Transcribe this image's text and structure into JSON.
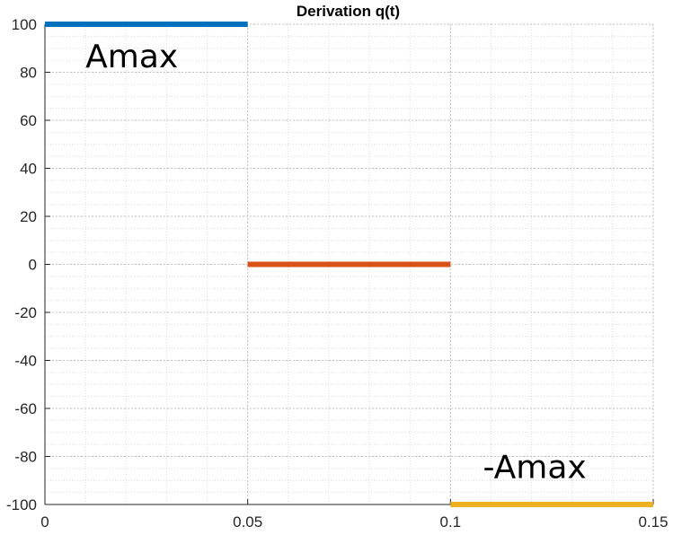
{
  "chart_data": {
    "type": "line",
    "title": "Derivation q(t)",
    "xlabel": "",
    "ylabel": "",
    "xlim": [
      0,
      0.15
    ],
    "ylim": [
      -100,
      100
    ],
    "x_ticks": [
      0,
      0.05,
      0.1,
      0.15
    ],
    "x_tick_labels": [
      "0",
      "0.05",
      "0.1",
      "0.15"
    ],
    "y_ticks": [
      100,
      80,
      60,
      40,
      20,
      0,
      -20,
      -40,
      -60,
      -80,
      -100
    ],
    "y_tick_labels": [
      "100",
      "80",
      "60",
      "40",
      "20",
      "0",
      "-20",
      "-40",
      "-60",
      "-80",
      "-100"
    ],
    "grid": true,
    "minor_grid": true,
    "series": [
      {
        "x": [
          0,
          0.05
        ],
        "y": [
          100,
          100
        ],
        "color": "#0072BD"
      },
      {
        "x": [
          0.05,
          0.1
        ],
        "y": [
          0,
          0
        ],
        "color": "#D95319"
      },
      {
        "x": [
          0.1,
          0.15
        ],
        "y": [
          -100,
          -100
        ],
        "color": "#EDB120"
      }
    ],
    "annotations": [
      {
        "text": "Amax",
        "x": 0.01,
        "y": 82
      },
      {
        "text": "-Amax",
        "x": 0.108,
        "y": -89
      }
    ]
  }
}
